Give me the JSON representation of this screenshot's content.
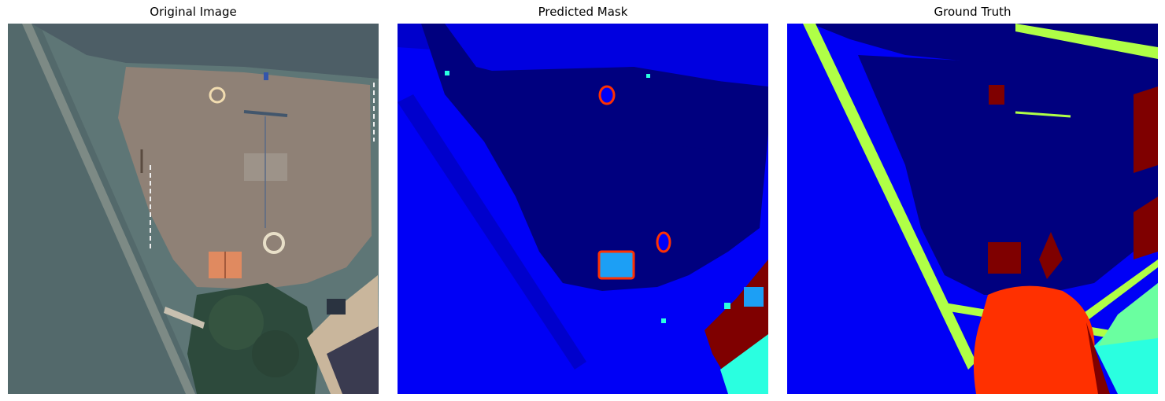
{
  "figure": {
    "panels": [
      {
        "title": "Original Image"
      },
      {
        "title": "Predicted Mask"
      },
      {
        "title": "Ground Truth"
      }
    ]
  },
  "colors": {
    "mask_dark_navy": "#00007f",
    "mask_blue": "#0000f6",
    "mask_sky": "#1c9ff5",
    "mask_cyan": "#2affe0",
    "mask_lime": "#b0ff46",
    "mask_red_orange": "#ff3000",
    "mask_dark_red": "#7f0000",
    "photo_grass": "#5e7676",
    "photo_court": "#8f8176",
    "photo_trees": "#2d4a3c",
    "photo_roof": "#3a3b50"
  }
}
